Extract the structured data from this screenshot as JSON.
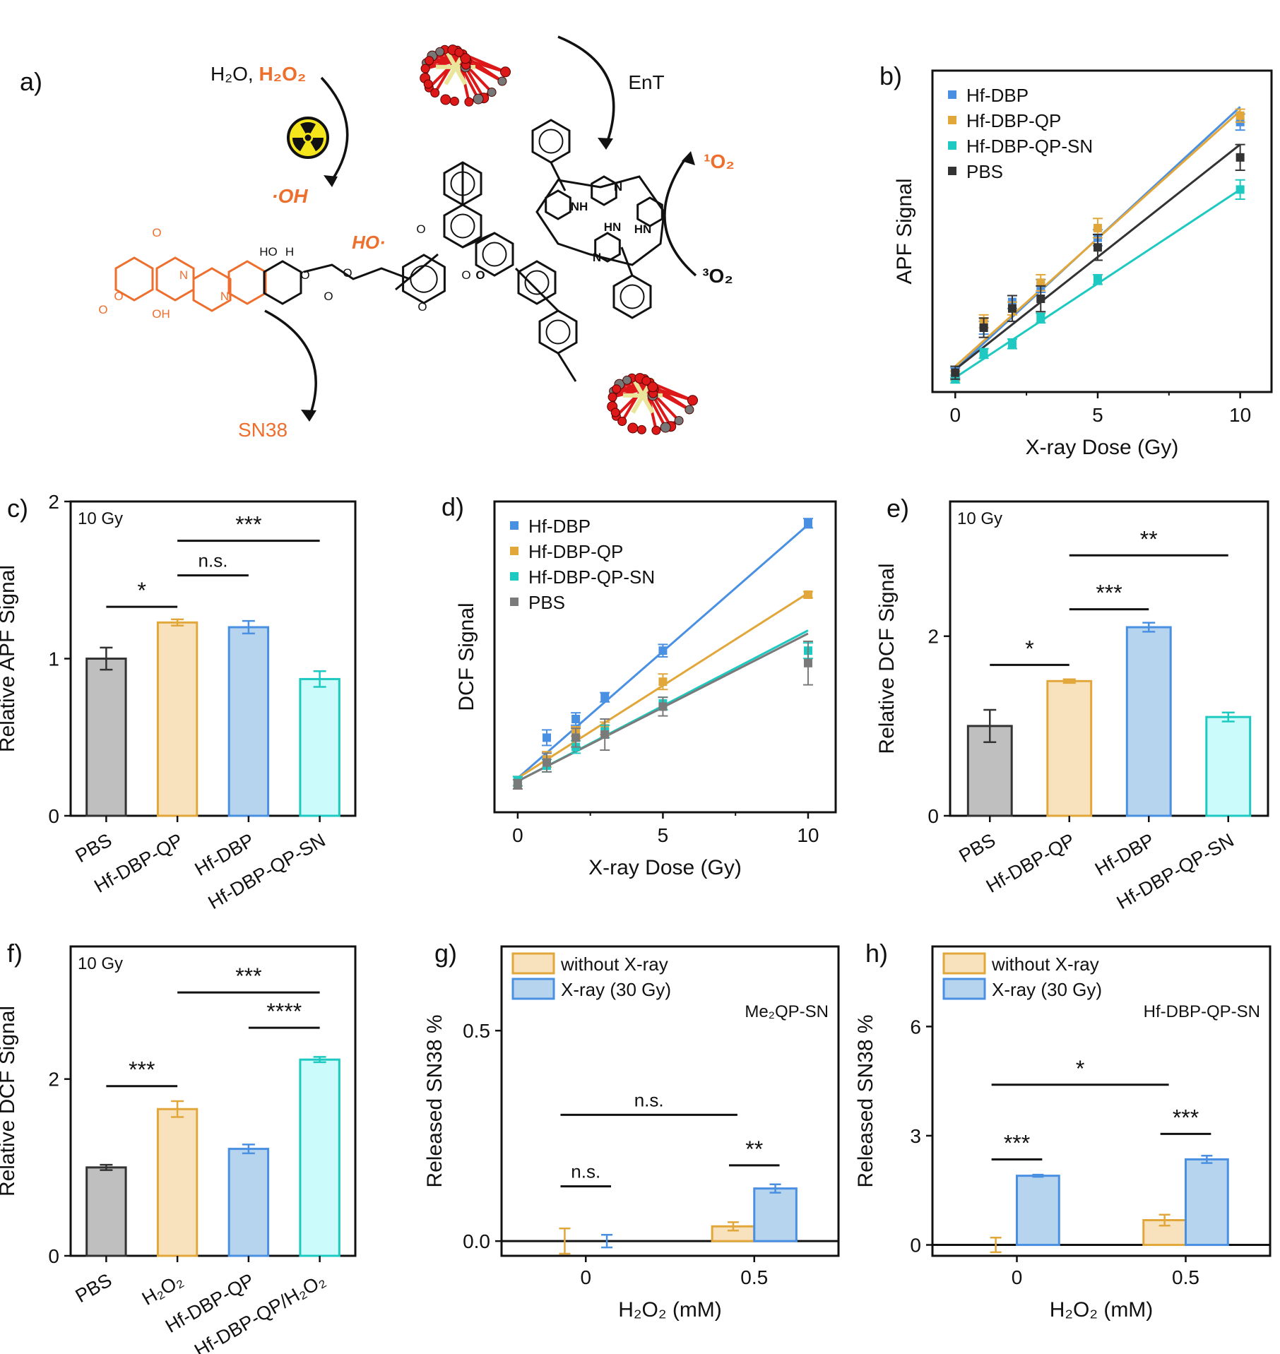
{
  "colors": {
    "blue": "#4a90e2",
    "orange": "#e2a73a",
    "teal": "#1dc9c0",
    "black": "#333333",
    "gray": "#7a7a7a",
    "scheme_orange": "#ee6f2d",
    "oxygen_red": "#dd1818",
    "hf_yellow": "#e9e59a",
    "carbon_gray": "#777777",
    "fill_gray": "#bfbfbf",
    "fill_orange": "#f7e2bd",
    "fill_blue": "#b7d4ee",
    "fill_teal": "#ccfbfb"
  },
  "scheme": {
    "panel_label": "a)",
    "reagent_water": "H₂O, ",
    "reagent_h2o2": "H₂O₂",
    "radiation_icon": "radiation-icon",
    "oh_radical": "·OH",
    "ho_radical": "HO·",
    "ent": "EnT",
    "singlet_o2": "¹O₂",
    "triplet_o2": "³O₂",
    "sn38": "SN38",
    "atom_labels": [
      "O",
      "O",
      "O",
      "N",
      "N",
      "OH",
      "HO",
      "H",
      "O",
      "O",
      "O",
      "O",
      "O",
      "O",
      "HN",
      "O",
      "NH",
      "N",
      "HN",
      "N"
    ]
  },
  "chart_data": [
    {
      "panel": "b)",
      "type": "scatter",
      "xlabel": "X-ray Dose (Gy)",
      "ylabel": "APF Signal",
      "xlim": [
        -0.8,
        11.1
      ],
      "ylim": [
        0,
        1
      ],
      "x_ticks": [
        0,
        5,
        10
      ],
      "y_ticks": [],
      "legend_position": "top-left",
      "series": [
        {
          "name": "Hf-DBP",
          "color": "blue",
          "x": [
            0,
            1,
            2,
            3,
            5,
            10
          ],
          "y": [
            0.06,
            0.2,
            0.28,
            0.33,
            0.48,
            0.84
          ],
          "err": [
            0.015,
            0.02,
            0.02,
            0.02,
            0.025,
            0.025
          ],
          "fit": [
            0.07,
            0.887
          ]
        },
        {
          "name": "Hf-DBP-QP",
          "color": "orange",
          "x": [
            0,
            1,
            2,
            3,
            5,
            10
          ],
          "y": [
            0.05,
            0.22,
            0.26,
            0.34,
            0.51,
            0.86
          ],
          "err": [
            0.015,
            0.02,
            0.02,
            0.025,
            0.03,
            0.02
          ],
          "fit": [
            0.08,
            0.875
          ]
        },
        {
          "name": "Hf-DBP-QP-SN",
          "color": "teal",
          "x": [
            0,
            1,
            2,
            3,
            5,
            10
          ],
          "y": [
            0.04,
            0.12,
            0.15,
            0.23,
            0.35,
            0.63
          ],
          "err": [
            0.012,
            0.015,
            0.015,
            0.015,
            0.015,
            0.03
          ],
          "fit": [
            0.045,
            0.63
          ]
        },
        {
          "name": "PBS",
          "color": "black",
          "x": [
            0,
            1,
            2,
            3,
            5,
            10
          ],
          "y": [
            0.06,
            0.2,
            0.26,
            0.29,
            0.45,
            0.73
          ],
          "err": [
            0.02,
            0.03,
            0.04,
            0.04,
            0.04,
            0.04
          ],
          "fit": [
            0.07,
            0.77
          ]
        }
      ]
    },
    {
      "panel": "c)",
      "type": "bar",
      "annotation": "10 Gy",
      "ylabel": "Relative APF Signal",
      "xlabel": "",
      "ylim": [
        0,
        2
      ],
      "y_ticks": [
        0,
        1,
        2
      ],
      "categories": [
        "PBS",
        "Hf-DBP-QP",
        "Hf-DBP",
        "Hf-DBP-QP-SN"
      ],
      "values": [
        1.0,
        1.23,
        1.2,
        0.87
      ],
      "errors": [
        0.07,
        0.02,
        0.04,
        0.05
      ],
      "colors": [
        "black",
        "orange",
        "blue",
        "teal"
      ],
      "significance": [
        {
          "from": 0,
          "to": 1,
          "label": "*",
          "y": 1.33
        },
        {
          "from": 1,
          "to": 2,
          "label": "n.s.",
          "y": 1.53
        },
        {
          "from": 1,
          "to": 3,
          "label": "***",
          "y": 1.75
        }
      ]
    },
    {
      "panel": "d)",
      "type": "scatter",
      "xlabel": "X-ray Dose (Gy)",
      "ylabel": "DCF Signal",
      "xlim": [
        -0.8,
        10.95
      ],
      "ylim": [
        0,
        1
      ],
      "x_ticks": [
        0,
        5,
        10
      ],
      "y_ticks": [],
      "legend_position": "top-left",
      "series": [
        {
          "name": "Hf-DBP",
          "color": "blue",
          "x": [
            0,
            1,
            2,
            3,
            5,
            10
          ],
          "y": [
            0.1,
            0.24,
            0.3,
            0.37,
            0.52,
            0.93
          ],
          "err": [
            0.015,
            0.025,
            0.02,
            0.015,
            0.02,
            0.015
          ],
          "fit": [
            0.11,
            0.925
          ]
        },
        {
          "name": "Hf-DBP-QP",
          "color": "orange",
          "x": [
            0,
            1,
            2,
            3,
            5,
            10
          ],
          "y": [
            0.1,
            0.17,
            0.26,
            0.27,
            0.42,
            0.7
          ],
          "err": [
            0.015,
            0.025,
            0.015,
            0.02,
            0.025,
            0.01
          ],
          "fit": [
            0.11,
            0.705
          ]
        },
        {
          "name": "Hf-DBP-QP-SN",
          "color": "teal",
          "x": [
            0,
            1,
            2,
            3,
            5,
            10
          ],
          "y": [
            0.1,
            0.15,
            0.21,
            0.26,
            0.35,
            0.52
          ],
          "err": [
            0.015,
            0.02,
            0.02,
            0.02,
            0.02,
            0.025
          ],
          "fit": [
            0.1,
            0.585
          ]
        },
        {
          "name": "PBS",
          "color": "gray",
          "x": [
            0,
            1,
            2,
            3,
            5,
            10
          ],
          "y": [
            0.09,
            0.16,
            0.24,
            0.25,
            0.34,
            0.48
          ],
          "err": [
            0.015,
            0.03,
            0.03,
            0.05,
            0.03,
            0.07
          ],
          "fit": [
            0.1,
            0.575
          ]
        }
      ]
    },
    {
      "panel": "e)",
      "type": "bar",
      "annotation": "10 Gy",
      "ylabel": "Relative DCF Signal",
      "xlabel": "",
      "ylim": [
        0,
        3.5
      ],
      "y_ticks": [
        0,
        2
      ],
      "categories": [
        "PBS",
        "Hf-DBP-QP",
        "Hf-DBP",
        "Hf-DBP-QP-SN"
      ],
      "values": [
        1.0,
        1.5,
        2.1,
        1.1
      ],
      "errors": [
        0.18,
        0.02,
        0.05,
        0.05
      ],
      "colors": [
        "black",
        "orange",
        "blue",
        "teal"
      ],
      "significance": [
        {
          "from": 0,
          "to": 1,
          "label": "*",
          "y": 1.68
        },
        {
          "from": 1,
          "to": 2,
          "label": "***",
          "y": 2.3
        },
        {
          "from": 1,
          "to": 3,
          "label": "**",
          "y": 2.9
        }
      ]
    },
    {
      "panel": "f)",
      "type": "bar",
      "annotation": "10 Gy",
      "ylabel": "Relative DCF Signal",
      "xlabel": "",
      "ylim": [
        0,
        3.5
      ],
      "y_ticks": [
        0,
        2
      ],
      "categories": [
        "PBS",
        "H₂O₂",
        "Hf-DBP-QP",
        "Hf-DBP-QP/H₂O₂"
      ],
      "values": [
        1.0,
        1.66,
        1.21,
        2.22
      ],
      "errors": [
        0.03,
        0.09,
        0.05,
        0.03
      ],
      "colors": [
        "black",
        "orange",
        "blue",
        "teal"
      ],
      "significance": [
        {
          "from": 0,
          "to": 1,
          "label": "***",
          "y": 1.92
        },
        {
          "from": 1,
          "to": 3,
          "label": "***",
          "y": 2.98
        },
        {
          "from": 2,
          "to": 3,
          "label": "****",
          "y": 2.58
        }
      ]
    },
    {
      "panel": "g)",
      "type": "bar",
      "annotation": "Me₂QP-SN",
      "ylabel": "Released SN38 %",
      "xlabel": "H₂O₂ (mM)",
      "ylim": [
        -0.035,
        0.7
      ],
      "y_ticks": [
        0.0,
        0.5
      ],
      "y_tick_labels": [
        "0.0",
        "0.5"
      ],
      "categories": [
        "0",
        "0.5"
      ],
      "legend_position": "top-left",
      "series": [
        {
          "name": "without X-ray",
          "color": "orange",
          "values": [
            0.0,
            0.035
          ],
          "errors": [
            0.03,
            0.01
          ]
        },
        {
          "name": "X-ray (30 Gy)",
          "color": "blue",
          "values": [
            0.0,
            0.125
          ],
          "errors": [
            0.015,
            0.01
          ]
        }
      ],
      "significance": [
        {
          "from": [
            0,
            0
          ],
          "to": [
            0,
            1
          ],
          "label": "n.s.",
          "y": 0.13
        },
        {
          "from": [
            1,
            0
          ],
          "to": [
            1,
            1
          ],
          "label": "**",
          "y": 0.18
        },
        {
          "from": [
            0,
            0
          ],
          "to": [
            1,
            0
          ],
          "label": "n.s.",
          "y": 0.3
        }
      ]
    },
    {
      "panel": "h)",
      "type": "bar",
      "annotation": "Hf-DBP-QP-SN",
      "ylabel": "Released SN38 %",
      "xlabel": "H₂O₂ (mM)",
      "ylim": [
        -0.3,
        8.2
      ],
      "y_ticks": [
        0,
        3,
        6
      ],
      "categories": [
        "0",
        "0.5"
      ],
      "legend_position": "top-left",
      "series": [
        {
          "name": "without X-ray",
          "color": "orange",
          "values": [
            0.0,
            0.68
          ],
          "errors": [
            0.2,
            0.15
          ]
        },
        {
          "name": "X-ray (30 Gy)",
          "color": "blue",
          "values": [
            1.9,
            2.35
          ],
          "errors": [
            0.03,
            0.1
          ]
        }
      ],
      "significance": [
        {
          "from": [
            0,
            0
          ],
          "to": [
            0,
            1
          ],
          "label": "***",
          "y": 2.35
        },
        {
          "from": [
            1,
            0
          ],
          "to": [
            1,
            1
          ],
          "label": "***",
          "y": 3.05
        },
        {
          "from": [
            0,
            0
          ],
          "to": [
            1,
            0
          ],
          "label": "*",
          "y": 4.4
        }
      ]
    }
  ]
}
